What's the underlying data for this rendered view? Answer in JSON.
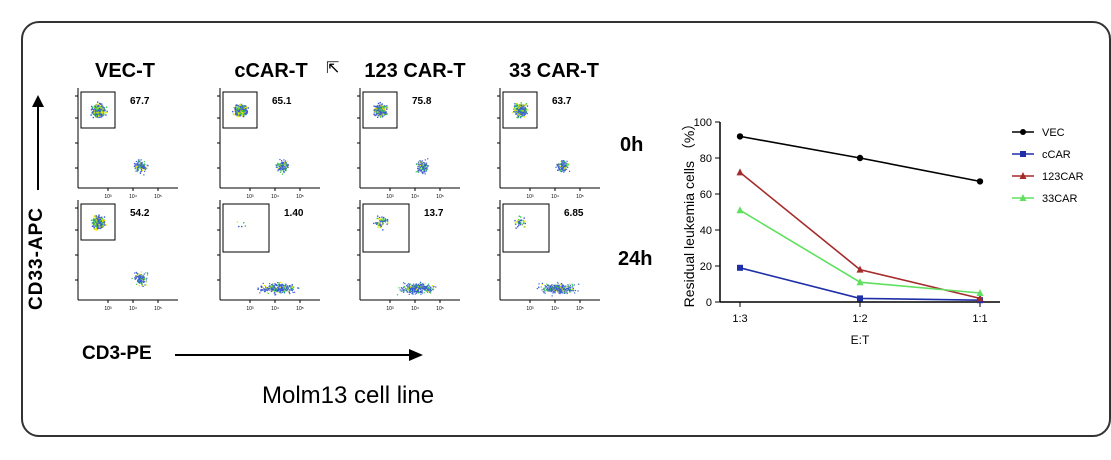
{
  "flow": {
    "columns": [
      "VEC-T",
      "cCAR-T",
      "123 CAR-T",
      "33 CAR-T"
    ],
    "rows": [
      "0h",
      "24h"
    ],
    "y_axis": "CD33-APC",
    "x_axis": "CD3-PE",
    "caption": "Molm13 cell line",
    "gate_values": [
      [
        "67.7",
        "65.1",
        "75.8",
        "63.7"
      ],
      [
        "54.2",
        "1.40",
        "13.7",
        "6.85"
      ]
    ],
    "tick_labels": [
      "10³",
      "10⁴",
      "10⁵"
    ]
  },
  "chart_data": {
    "type": "line",
    "x": [
      "1:3",
      "1:2",
      "1:1"
    ],
    "xlabel": "E:T",
    "ylabel": "Residual leukemia cells （%）",
    "ylim": [
      0,
      100
    ],
    "yticks": [
      0,
      20,
      40,
      60,
      80,
      100
    ],
    "grid": false,
    "legend": "right",
    "series": [
      {
        "name": "VEC",
        "values": [
          92,
          80,
          67
        ],
        "color": "#000000",
        "marker": "circle"
      },
      {
        "name": "cCAR",
        "values": [
          19,
          2,
          1
        ],
        "color": "#1f2fa8",
        "marker": "square"
      },
      {
        "name": "123CAR",
        "values": [
          72,
          18,
          2
        ],
        "color": "#a52a2a",
        "marker": "triangle"
      },
      {
        "name": "33CAR",
        "values": [
          51,
          11,
          5
        ],
        "color": "#5fe05f",
        "marker": "triangle"
      }
    ]
  }
}
